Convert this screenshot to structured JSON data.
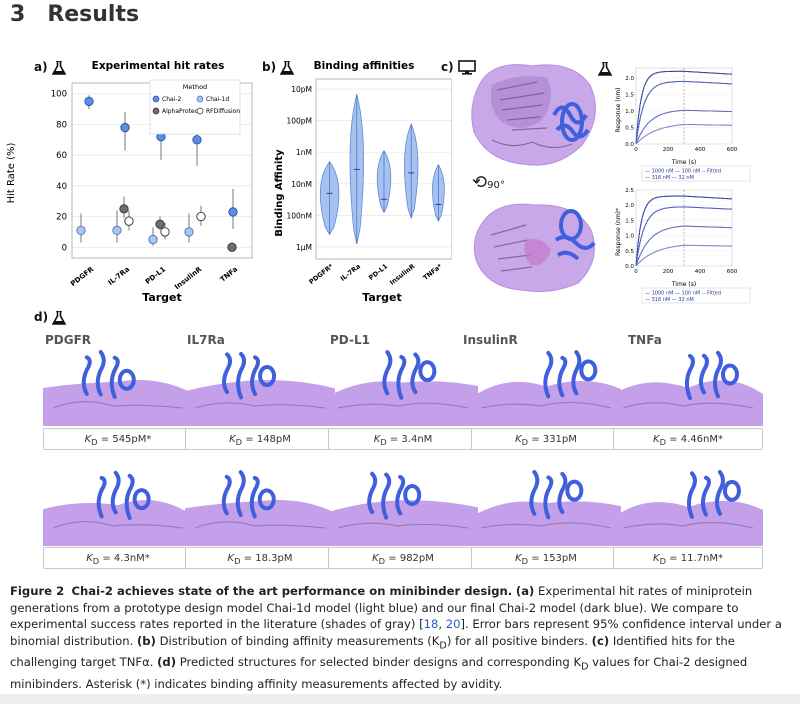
{
  "section": {
    "number": "3",
    "title": "Results"
  },
  "panel_a": {
    "label": "a)",
    "title": "Experimental hit rates",
    "legend_title": "Method",
    "legend": [
      "Chai-2",
      "Chai-1d",
      "AlphaProteo",
      "RFDiffusion"
    ],
    "colors": {
      "chai2": "#5b8ee0",
      "chai1d": "#aac6f0",
      "alphaproteo": "#6e6e6e",
      "rfdiffusion": "#ffffff"
    },
    "ylabel": "Hit Rate (%)",
    "xlabel": "Target",
    "ytick_labels": [
      "0",
      "20",
      "40",
      "60",
      "80",
      "100"
    ],
    "categories": [
      "PDGFR",
      "IL-7Ra",
      "PD-L1",
      "InsulinR",
      "TNFa"
    ]
  },
  "panel_b": {
    "label": "b)",
    "title": "Binding affinities",
    "ylabel": "Binding Affinity",
    "xlabel": "Target",
    "ytick_labels": [
      "10pM",
      "100pM",
      "1nM",
      "10nM",
      "100nM",
      "1μM"
    ],
    "categories": [
      "PDGFR*",
      "IL-7Ra",
      "PD-L1",
      "InsulinR",
      "TNFa*"
    ]
  },
  "panel_c": {
    "label": "c)",
    "rotate_label": "90°",
    "ylabel_top": "Response (nm)",
    "ylabel_bottom": "Response (nm)*",
    "xlabel": "Time (s)",
    "ytick_labels": [
      "0.0",
      "0.5",
      "1.0",
      "1.5",
      "2.0",
      "2.5"
    ],
    "xtick_labels": [
      "0",
      "200",
      "400",
      "600"
    ],
    "legend_line1": "— 1000 nM  — 100 nM  -- Fitted",
    "legend_line2": "— 316 nM  — 32 nM"
  },
  "panel_d": {
    "label": "d)",
    "targets": [
      "PDGFR",
      "IL7Ra",
      "PD-L1",
      "InsulinR",
      "TNFa"
    ],
    "kd_row1": [
      "545pM*",
      "148pM",
      "3.4nM",
      "331pM",
      "4.46nM*"
    ],
    "kd_row2": [
      "4.3nM*",
      "18.3pM",
      "982pM",
      "153pM",
      "11.7nM*"
    ]
  },
  "chart_data": [
    {
      "type": "scatter",
      "title": "Experimental hit rates",
      "xlabel": "Target",
      "ylabel": "Hit Rate (%)",
      "ylim": [
        0,
        100
      ],
      "categories": [
        "PDGFR",
        "IL-7Ra",
        "PD-L1",
        "InsulinR",
        "TNFa"
      ],
      "series": [
        {
          "name": "Chai-2",
          "values": [
            95,
            78,
            72,
            70,
            23
          ],
          "ci_low": [
            90,
            63,
            57,
            53,
            12
          ],
          "ci_high": [
            99,
            88,
            84,
            82,
            38
          ]
        },
        {
          "name": "Chai-1d",
          "values": [
            11,
            11,
            5,
            10,
            null
          ],
          "ci_low": [
            3,
            3,
            1,
            3,
            null
          ],
          "ci_high": [
            22,
            24,
            13,
            22,
            null
          ]
        },
        {
          "name": "AlphaProteo",
          "values": [
            null,
            25,
            15,
            null,
            0
          ],
          "ci_low": [
            null,
            19,
            11,
            null,
            0
          ],
          "ci_high": [
            null,
            33,
            20,
            null,
            3
          ]
        },
        {
          "name": "RFDiffusion",
          "values": [
            null,
            17,
            10,
            20,
            null
          ],
          "ci_low": [
            null,
            11,
            5,
            14,
            null
          ],
          "ci_high": [
            null,
            24,
            16,
            27,
            null
          ]
        }
      ]
    },
    {
      "type": "violin",
      "title": "Binding affinities",
      "xlabel": "Target",
      "ylabel": "Binding Affinity",
      "categories": [
        "PDGFR*",
        "IL-7Ra",
        "PD-L1",
        "InsulinR",
        "TNFa*"
      ],
      "range_pM": [
        [
          2000,
          400000
        ],
        [
          15,
          800000
        ],
        [
          900,
          80000
        ],
        [
          130,
          120000
        ],
        [
          2500,
          150000
        ]
      ],
      "median_pM": [
        20000,
        3500,
        31000,
        4500,
        45000
      ]
    },
    {
      "type": "line",
      "xlabel": "Time (s)",
      "ylabel": "Response (nm)",
      "xlim": [
        0,
        600
      ],
      "ylim": [
        0,
        2.3
      ],
      "series": [
        {
          "name": "1000 nM",
          "plateau": 2.2
        },
        {
          "name": "316 nM",
          "plateau": 1.9
        },
        {
          "name": "100 nM",
          "plateau": 1.05
        },
        {
          "name": "32 nM",
          "plateau": 0.65
        }
      ]
    },
    {
      "type": "line",
      "xlabel": "Time (s)",
      "ylabel": "Response (nm)*",
      "xlim": [
        0,
        600
      ],
      "ylim": [
        0,
        2.5
      ],
      "series": [
        {
          "name": "1000 nM",
          "plateau": 2.3
        },
        {
          "name": "316 nM",
          "plateau": 1.95
        },
        {
          "name": "100 nM",
          "plateau": 1.35
        },
        {
          "name": "32 nM",
          "plateau": 0.75
        }
      ]
    }
  ],
  "caption": {
    "head": "Figure 2",
    "bold_title": "Chai-2 achieves state of the art performance on minibinder design.",
    "a_tag": "(a)",
    "a_text_1": "Experimental hit rates of miniprotein generations from a prototype design model Chai-1d model (light blue) and our final Chai-2 model (dark blue). We compare to experimental success rates reported in the literature (shades of gray) [",
    "ref1": "18",
    "ref_sep": ", ",
    "ref2": "20",
    "a_text_2": "].  Error bars represent 95% confidence interval under a binomial distribution.",
    "b_tag": "(b)",
    "b_text": "Distribution of binding affinity measurements (K",
    "b_sub": "D",
    "b_text_2": ") for all positive binders.",
    "c_tag": "(c)",
    "c_text": "Identified hits for the challenging target TNFα.",
    "d_tag": "(d)",
    "d_text": "Predicted structures for selected binder designs and corresponding K",
    "d_sub": "D",
    "d_text_2": " values for Chai-2 designed minibinders. Asterisk (*) indicates binding affinity measurements affected by avidity."
  }
}
